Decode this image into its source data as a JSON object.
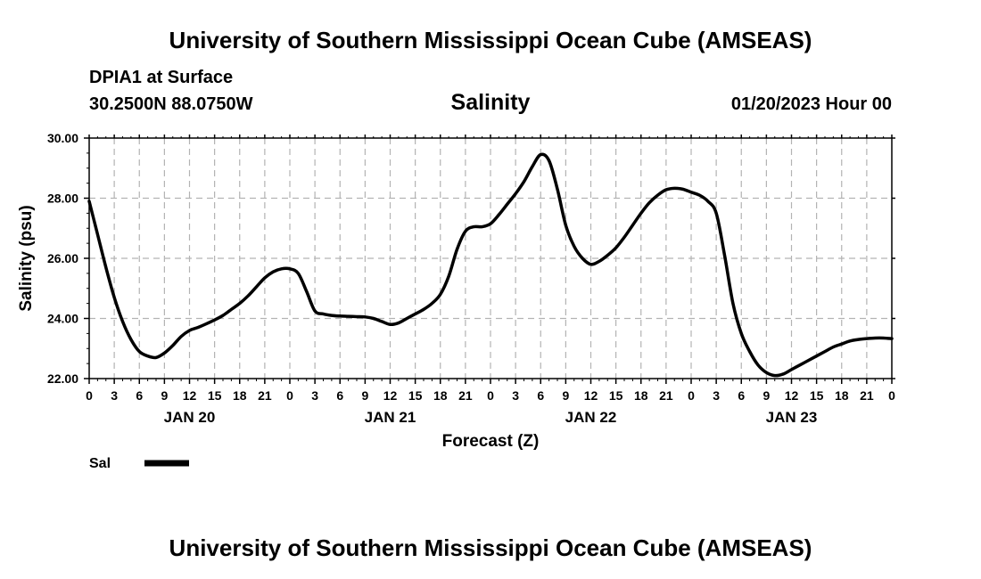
{
  "header": {
    "title_top": "University of Southern Mississippi Ocean Cube (AMSEAS)",
    "station": "DPIA1 at Surface",
    "coords": "30.2500N  88.0750W",
    "chart_title": "Salinity",
    "date": "01/20/2023 Hour 00"
  },
  "footer": {
    "title_bottom": "University of Southern Mississippi Ocean Cube (AMSEAS)"
  },
  "chart_data": {
    "type": "line",
    "title": "Salinity",
    "xlabel": "Forecast (Z)",
    "ylabel": "Salinity (psu)",
    "ylim": [
      22.0,
      30.0
    ],
    "xlim_hours": [
      0,
      96
    ],
    "y_ticks": [
      "22.00",
      "24.00",
      "26.00",
      "28.00",
      "30.00"
    ],
    "y_tick_values": [
      22,
      24,
      26,
      28,
      30
    ],
    "x_ticks": [
      {
        "hour": 0,
        "label": "0"
      },
      {
        "hour": 3,
        "label": "3"
      },
      {
        "hour": 6,
        "label": "6"
      },
      {
        "hour": 9,
        "label": "9"
      },
      {
        "hour": 12,
        "label": "12"
      },
      {
        "hour": 15,
        "label": "15"
      },
      {
        "hour": 18,
        "label": "18"
      },
      {
        "hour": 21,
        "label": "21"
      },
      {
        "hour": 24,
        "label": "0"
      },
      {
        "hour": 27,
        "label": "3"
      },
      {
        "hour": 30,
        "label": "6"
      },
      {
        "hour": 33,
        "label": "9"
      },
      {
        "hour": 36,
        "label": "12"
      },
      {
        "hour": 39,
        "label": "15"
      },
      {
        "hour": 42,
        "label": "18"
      },
      {
        "hour": 45,
        "label": "21"
      },
      {
        "hour": 48,
        "label": "0"
      },
      {
        "hour": 51,
        "label": "3"
      },
      {
        "hour": 54,
        "label": "6"
      },
      {
        "hour": 57,
        "label": "9"
      },
      {
        "hour": 60,
        "label": "12"
      },
      {
        "hour": 63,
        "label": "15"
      },
      {
        "hour": 66,
        "label": "18"
      },
      {
        "hour": 69,
        "label": "21"
      },
      {
        "hour": 72,
        "label": "0"
      },
      {
        "hour": 75,
        "label": "3"
      },
      {
        "hour": 78,
        "label": "6"
      },
      {
        "hour": 81,
        "label": "9"
      },
      {
        "hour": 84,
        "label": "12"
      },
      {
        "hour": 87,
        "label": "15"
      },
      {
        "hour": 90,
        "label": "18"
      },
      {
        "hour": 93,
        "label": "21"
      },
      {
        "hour": 96,
        "label": "0"
      }
    ],
    "day_labels": [
      {
        "hour": 12,
        "label": "JAN 20"
      },
      {
        "hour": 36,
        "label": "JAN 21"
      },
      {
        "hour": 60,
        "label": "JAN 22"
      },
      {
        "hour": 84,
        "label": "JAN 23"
      }
    ],
    "grid": true,
    "legend_position": "bottom-left",
    "series": [
      {
        "name": "Sal",
        "color": "#000000",
        "x": [
          0,
          1,
          2,
          3,
          4,
          5,
          6,
          7,
          8,
          9,
          10,
          11,
          12,
          13,
          14,
          15,
          16,
          17,
          18,
          19,
          20,
          21,
          22,
          23,
          24,
          25,
          26,
          27,
          28,
          29,
          30,
          31,
          32,
          33,
          34,
          35,
          36,
          37,
          38,
          39,
          40,
          41,
          42,
          43,
          44,
          45,
          46,
          47,
          48,
          49,
          50,
          51,
          52,
          53,
          54,
          55,
          56,
          57,
          58,
          59,
          60,
          61,
          62,
          63,
          64,
          65,
          66,
          67,
          68,
          69,
          70,
          71,
          72,
          73,
          74,
          75,
          76,
          77,
          78,
          79,
          80,
          81,
          82,
          83,
          84,
          85,
          86,
          87,
          88,
          89,
          90,
          91,
          92,
          93,
          94,
          95,
          96
        ],
        "values": [
          27.9,
          26.8,
          25.7,
          24.7,
          23.9,
          23.3,
          22.9,
          22.75,
          22.7,
          22.85,
          23.1,
          23.4,
          23.6,
          23.7,
          23.82,
          23.95,
          24.1,
          24.3,
          24.5,
          24.75,
          25.05,
          25.35,
          25.55,
          25.65,
          25.65,
          25.5,
          24.9,
          24.25,
          24.15,
          24.1,
          24.08,
          24.07,
          24.06,
          24.05,
          24.0,
          23.9,
          23.8,
          23.85,
          24.0,
          24.15,
          24.3,
          24.5,
          24.8,
          25.4,
          26.3,
          26.9,
          27.05,
          27.05,
          27.15,
          27.45,
          27.8,
          28.15,
          28.55,
          29.05,
          29.45,
          29.25,
          28.3,
          27.1,
          26.4,
          26.0,
          25.8,
          25.9,
          26.1,
          26.35,
          26.7,
          27.1,
          27.5,
          27.85,
          28.1,
          28.28,
          28.33,
          28.3,
          28.2,
          28.1,
          27.9,
          27.5,
          26.1,
          24.5,
          23.5,
          22.9,
          22.45,
          22.2,
          22.1,
          22.15,
          22.3,
          22.45,
          22.6,
          22.75,
          22.9,
          23.05,
          23.15,
          23.25,
          23.3,
          23.33,
          23.35,
          23.35,
          23.33
        ]
      }
    ]
  }
}
